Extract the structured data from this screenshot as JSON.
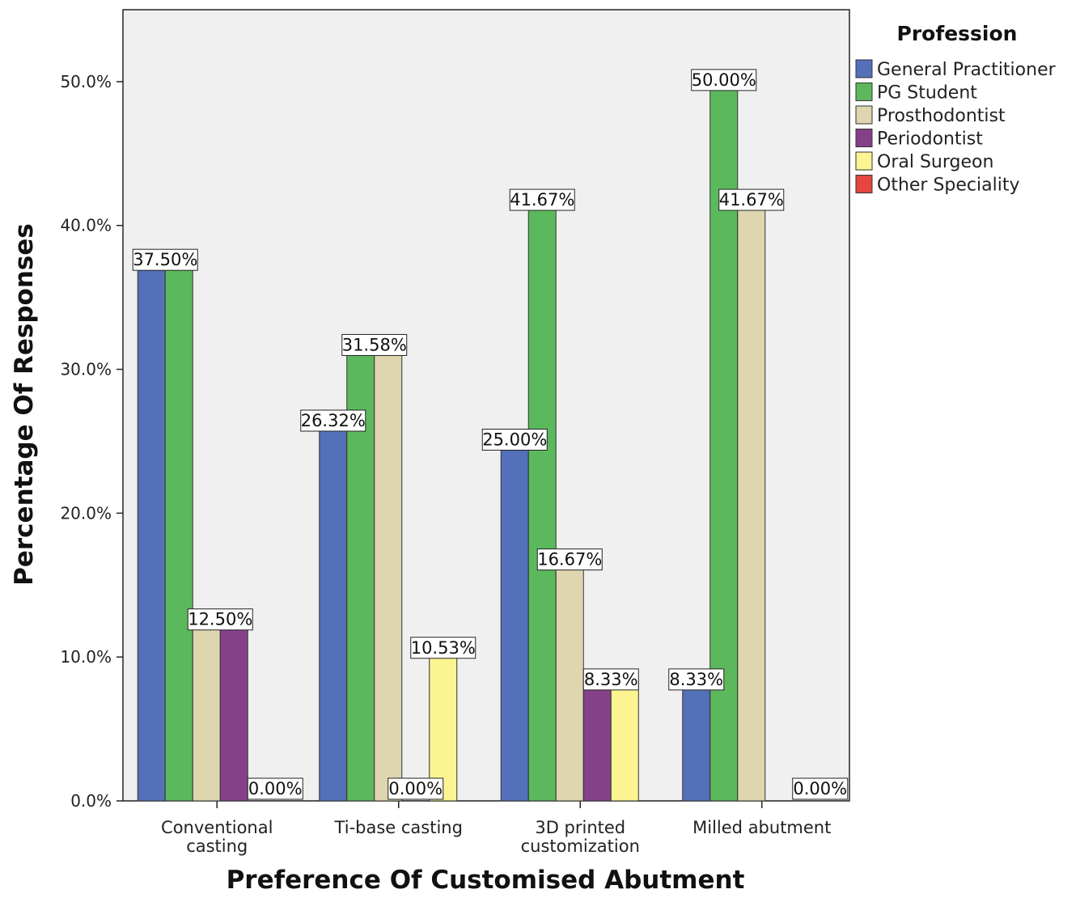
{
  "chart_data": {
    "type": "bar",
    "title": "",
    "xlabel": "Preference Of Customised Abutment",
    "ylabel": "Percentage Of Responses",
    "ylim": [
      0,
      55
    ],
    "yticks": [
      0,
      10,
      20,
      30,
      40,
      50
    ],
    "ytick_labels": [
      "0.0%",
      "10.0%",
      "20.0%",
      "30.0%",
      "40.0%",
      "50.0%"
    ],
    "categories": [
      [
        "Conventional",
        "casting"
      ],
      [
        "Ti-base casting"
      ],
      [
        "3D printed",
        "customization"
      ],
      [
        "Milled abutment"
      ]
    ],
    "legend": {
      "title": "Profession",
      "placement": "right"
    },
    "grid": false,
    "series": [
      {
        "name": "General Practitioner",
        "color": "#5470b8",
        "values": [
          37.5,
          26.32,
          25.0,
          8.33
        ]
      },
      {
        "name": "PG Student",
        "color": "#5cb85c",
        "values": [
          37.5,
          31.58,
          41.67,
          50.0
        ]
      },
      {
        "name": "Prosthodontist",
        "color": "#ddd6af",
        "values": [
          12.5,
          31.58,
          16.67,
          41.67
        ]
      },
      {
        "name": "Periodontist",
        "color": "#86408a",
        "values": [
          12.5,
          0,
          8.33,
          0
        ]
      },
      {
        "name": "Oral Surgeon",
        "color": "#fbf491",
        "values": [
          0,
          10.53,
          8.33,
          0
        ]
      },
      {
        "name": "Other Speciality",
        "color": "#e4453c",
        "values": [
          0,
          0,
          0,
          0
        ]
      }
    ],
    "data_labels": [
      {
        "text": "37.50%",
        "category": 0,
        "series": [
          0,
          1
        ],
        "value": 37.5
      },
      {
        "text": "12.50%",
        "category": 0,
        "series": [
          2,
          3
        ],
        "value": 12.5
      },
      {
        "text": "0.00%",
        "category": 0,
        "series": [
          4,
          5
        ],
        "value": 0
      },
      {
        "text": "26.32%",
        "category": 1,
        "series": [
          0
        ],
        "value": 26.32
      },
      {
        "text": "31.58%",
        "category": 1,
        "series": [
          1,
          2
        ],
        "value": 31.58
      },
      {
        "text": "0.00%",
        "category": 1,
        "series": [
          3
        ],
        "value": 0
      },
      {
        "text": "10.53%",
        "category": 1,
        "series": [
          4
        ],
        "value": 10.53
      },
      {
        "text": "25.00%",
        "category": 2,
        "series": [
          0
        ],
        "value": 25.0
      },
      {
        "text": "41.67%",
        "category": 2,
        "series": [
          1
        ],
        "value": 41.67
      },
      {
        "text": "16.67%",
        "category": 2,
        "series": [
          2
        ],
        "value": 16.67
      },
      {
        "text": "8.33%",
        "category": 2,
        "series": [
          3,
          4
        ],
        "value": 8.33
      },
      {
        "text": "8.33%",
        "category": 3,
        "series": [
          0
        ],
        "value": 8.33
      },
      {
        "text": "50.00%",
        "category": 3,
        "series": [
          1
        ],
        "value": 50.0
      },
      {
        "text": "41.67%",
        "category": 3,
        "series": [
          2
        ],
        "value": 41.67
      },
      {
        "text": "0.00%",
        "category": 3,
        "series": [
          4,
          5
        ],
        "value": 0
      }
    ]
  }
}
